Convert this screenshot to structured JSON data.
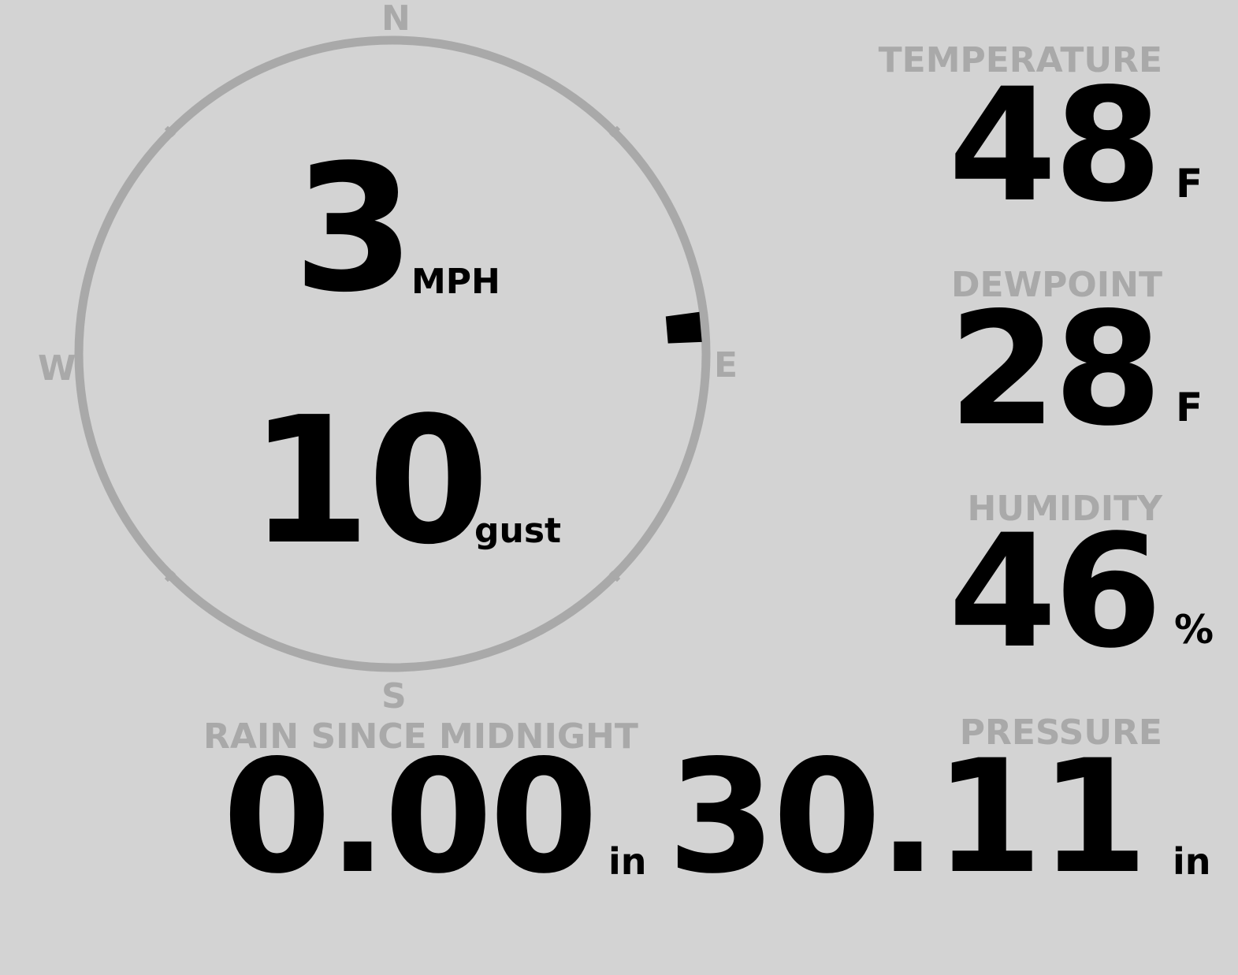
{
  "colors": {
    "background": "#d3d3d3",
    "dim": "#a9a9a9",
    "value": "#000000"
  },
  "compass": {
    "north": "N",
    "south": "S",
    "east": "E",
    "west": "W",
    "wind_direction_deg": 85
  },
  "wind": {
    "speed": "3",
    "speed_unit": "MPH",
    "gust": "10",
    "gust_unit": "gust"
  },
  "temperature": {
    "label": "TEMPERATURE",
    "value": "48",
    "unit": "F"
  },
  "dewpoint": {
    "label": "DEWPOINT",
    "value": "28",
    "unit": "F"
  },
  "humidity": {
    "label": "HUMIDITY",
    "value": "46",
    "unit": "%"
  },
  "rain": {
    "label": "RAIN SINCE MIDNIGHT",
    "value": "0.00",
    "unit": "in"
  },
  "pressure": {
    "label": "PRESSURE",
    "value": "30.11",
    "unit": "in"
  }
}
